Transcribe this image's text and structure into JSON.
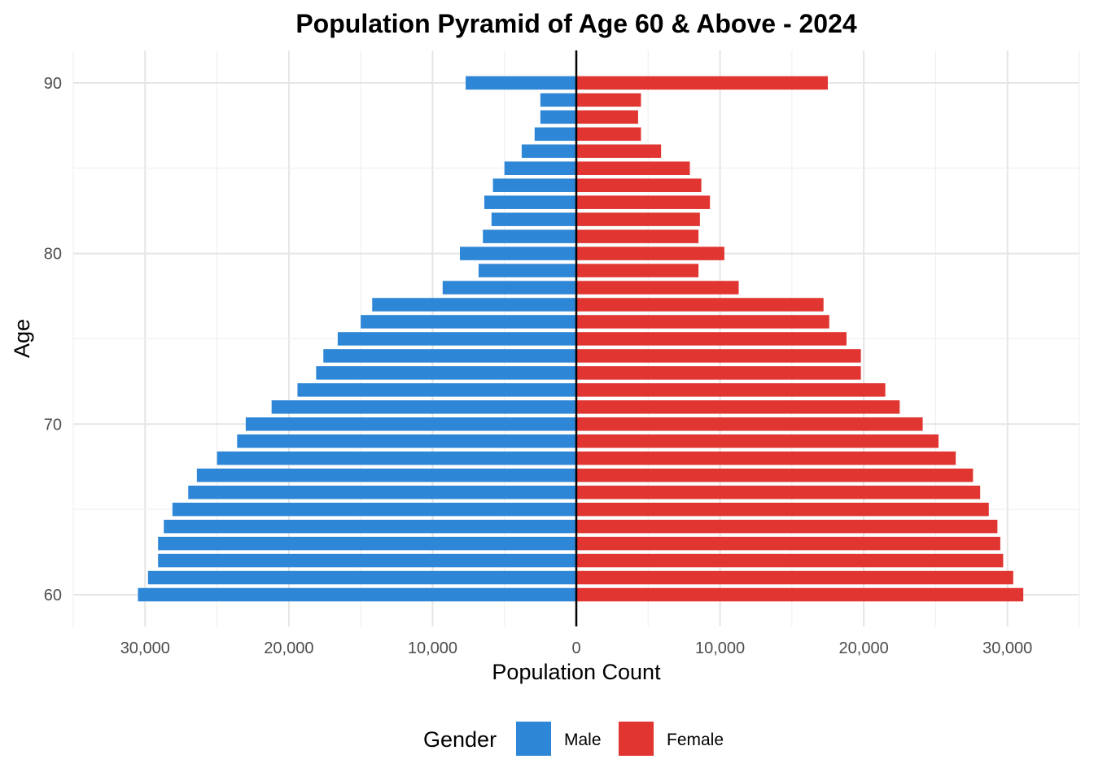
{
  "chart_data": {
    "type": "bar",
    "orientation": "horizontal-pyramid",
    "title": "Population Pyramid of Age 60 & Above - 2024",
    "xlabel": "Population Count",
    "ylabel": "Age",
    "xlim": [
      -35000,
      35000
    ],
    "ylim": [
      60,
      90
    ],
    "x_ticks": [
      -30000,
      -20000,
      -10000,
      0,
      10000,
      20000,
      30000
    ],
    "x_tick_labels": [
      "30,000",
      "20,000",
      "10,000",
      "0",
      "10,000",
      "20,000",
      "30,000"
    ],
    "y_ticks": [
      60,
      70,
      80,
      90
    ],
    "y_tick_labels": [
      "60",
      "70",
      "80",
      "90"
    ],
    "grid": true,
    "legend": {
      "title": "Gender",
      "placement": "bottom"
    },
    "ages": [
      60,
      61,
      62,
      63,
      64,
      65,
      66,
      67,
      68,
      69,
      70,
      71,
      72,
      73,
      74,
      75,
      76,
      77,
      78,
      79,
      80,
      81,
      82,
      83,
      84,
      85,
      86,
      87,
      88,
      89,
      90
    ],
    "series": [
      {
        "name": "Male",
        "color": "#2E86D6",
        "values": [
          30500,
          29800,
          29100,
          29100,
          28700,
          28100,
          27000,
          26400,
          25000,
          23600,
          23000,
          21200,
          19400,
          18100,
          17600,
          16600,
          15000,
          14200,
          9300,
          6800,
          8100,
          6500,
          5900,
          6400,
          5800,
          5000,
          3800,
          2900,
          2500,
          2500,
          7700
        ]
      },
      {
        "name": "Female",
        "color": "#E03530",
        "values": [
          31100,
          30400,
          29700,
          29500,
          29300,
          28700,
          28100,
          27600,
          26400,
          25200,
          24100,
          22500,
          21500,
          19800,
          19800,
          18800,
          17600,
          17200,
          11300,
          8500,
          10300,
          8500,
          8600,
          9300,
          8700,
          7900,
          5900,
          4500,
          4300,
          4500,
          17500
        ]
      }
    ]
  }
}
